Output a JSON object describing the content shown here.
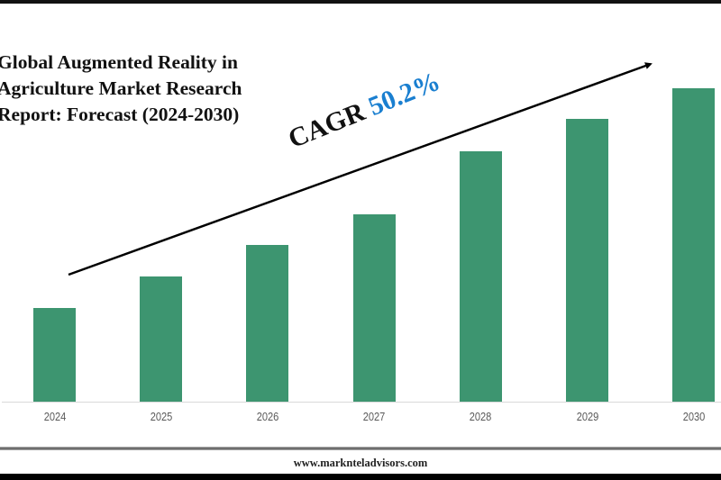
{
  "title": "Global Augmented Reality in\nAgriculture Market Research\nReport: Forecast (2024-2030)",
  "cagr": {
    "label": "CAGR",
    "value": "50.2%",
    "value_color": "#1a7fd0"
  },
  "footer": {
    "url": "www.marknteladvisors.com"
  },
  "colors": {
    "bar": "#3d9570",
    "axis": "#d9d9d9",
    "arrow": "#000000"
  },
  "chart_data": {
    "type": "bar",
    "title": "Global Augmented Reality in Agriculture Market Research Report: Forecast (2024-2030)",
    "xlabel": "",
    "ylabel": "",
    "categories": [
      "2024",
      "2025",
      "2026",
      "2027",
      "2028",
      "2029",
      "2030"
    ],
    "values": [
      104,
      139,
      174,
      208,
      278,
      314,
      348
    ],
    "value_units": "relative bar height (px, unlabeled axis)",
    "annotations": [
      "CAGR 50.2%"
    ],
    "grid": false,
    "legend": null
  }
}
